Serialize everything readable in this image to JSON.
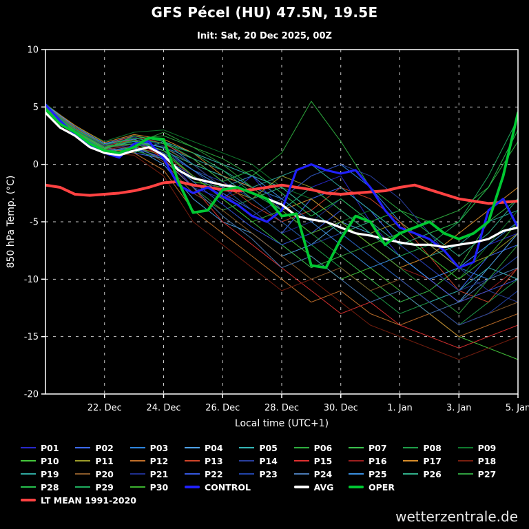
{
  "watermark": "wetterzentrale.de",
  "chart_data": {
    "type": "line",
    "title": "GFS Pécel (HU) 47.5N, 19.5E",
    "subtitle": "Init: Sat, 20 Dec 2025, 00Z",
    "xlabel": "Local time (UTC+1)",
    "ylabel": "850 hPa Temp. (°C)",
    "background": "#000000",
    "grid": "dashed",
    "ylim": [
      -20,
      10
    ],
    "yticks": [
      -20,
      -15,
      -10,
      -5,
      0,
      5,
      10
    ],
    "xlim_days": [
      0,
      16
    ],
    "xticks": [
      {
        "day": 2,
        "label": "22. Dec"
      },
      {
        "day": 4,
        "label": "24. Dec"
      },
      {
        "day": 6,
        "label": "26. Dec"
      },
      {
        "day": 8,
        "label": "28. Dec"
      },
      {
        "day": 10,
        "label": "30. Dec"
      },
      {
        "day": 12,
        "label": "1. Jan"
      },
      {
        "day": 14,
        "label": "3. Jan"
      },
      {
        "day": 16,
        "label": "5. Jan"
      }
    ],
    "member_x_step_days": 1,
    "main_x_step_days": 0.5,
    "members": [
      {
        "name": "P01",
        "color": "#2929cc",
        "values": [
          5.0,
          3.0,
          1.5,
          2.0,
          1.0,
          -2.0,
          -3.0,
          -1.0,
          -4.0,
          -2.0,
          -1.0,
          -5.0,
          -8.0,
          -10.0,
          -9.0,
          -7.0,
          -6.0
        ]
      },
      {
        "name": "P02",
        "color": "#3d6bff",
        "values": [
          4.8,
          2.8,
          1.2,
          1.0,
          0.5,
          -1.0,
          -2.5,
          -4.0,
          -6.0,
          -3.0,
          -2.0,
          -4.0,
          -7.0,
          -9.0,
          -11.0,
          -8.0,
          -7.0
        ]
      },
      {
        "name": "P03",
        "color": "#2f86e0",
        "values": [
          5.2,
          3.2,
          1.8,
          2.5,
          2.0,
          0.0,
          -1.0,
          -2.0,
          -3.0,
          -1.0,
          0.0,
          -2.0,
          -5.0,
          -7.0,
          -9.0,
          -10.0,
          -8.0
        ]
      },
      {
        "name": "P04",
        "color": "#4fa3e8",
        "values": [
          4.6,
          2.5,
          1.0,
          1.5,
          0.0,
          -3.0,
          -5.0,
          -6.0,
          -8.0,
          -7.0,
          -5.0,
          -6.0,
          -8.0,
          -10.0,
          -12.0,
          -9.0,
          -6.0
        ]
      },
      {
        "name": "P05",
        "color": "#35b8b8",
        "values": [
          5.0,
          3.0,
          1.5,
          1.0,
          2.0,
          1.0,
          0.0,
          -1.0,
          -2.0,
          -4.0,
          -6.0,
          -8.0,
          -10.0,
          -12.0,
          -11.0,
          -9.0,
          -10.0
        ]
      },
      {
        "name": "P06",
        "color": "#2fae3f",
        "values": [
          4.9,
          2.9,
          1.4,
          2.2,
          2.5,
          1.5,
          0.5,
          -1.0,
          1.0,
          5.5,
          2.0,
          -2.0,
          -4.0,
          -5.0,
          -4.0,
          -2.0,
          2.0
        ]
      },
      {
        "name": "P07",
        "color": "#3cc24e",
        "values": [
          5.1,
          3.1,
          1.6,
          1.8,
          1.0,
          -1.0,
          -3.0,
          -5.0,
          -7.0,
          -9.0,
          -8.0,
          -10.0,
          -12.0,
          -11.0,
          -9.0,
          -5.0,
          -3.0
        ]
      },
      {
        "name": "P08",
        "color": "#1f9e4a",
        "values": [
          4.7,
          2.7,
          1.3,
          1.2,
          0.5,
          -2.0,
          -4.0,
          -3.0,
          -5.0,
          -7.0,
          -9.0,
          -11.0,
          -13.0,
          -12.0,
          -14.0,
          -12.0,
          -10.0
        ]
      },
      {
        "name": "P09",
        "color": "#0f7a2e",
        "values": [
          5.3,
          3.3,
          2.0,
          2.8,
          3.0,
          2.0,
          1.0,
          0.0,
          -2.0,
          -3.0,
          -5.0,
          -4.0,
          -6.0,
          -8.0,
          -10.0,
          -7.0,
          -4.0
        ]
      },
      {
        "name": "P10",
        "color": "#45c93c",
        "values": [
          4.8,
          2.6,
          1.1,
          1.5,
          0.8,
          -1.5,
          -2.0,
          -4.0,
          -6.0,
          -8.0,
          -10.0,
          -9.0,
          -11.0,
          -13.0,
          -15.0,
          -16.0,
          -17.0
        ]
      },
      {
        "name": "P11",
        "color": "#9d9d2a",
        "values": [
          5.0,
          3.0,
          1.5,
          2.0,
          1.5,
          0.0,
          -2.0,
          -3.0,
          -1.0,
          -2.0,
          -4.0,
          -6.0,
          -5.0,
          -7.0,
          -9.0,
          -8.0,
          -6.0
        ]
      },
      {
        "name": "P12",
        "color": "#c2702a",
        "values": [
          4.9,
          2.8,
          1.4,
          1.0,
          -0.5,
          -4.0,
          -6.0,
          -8.0,
          -10.0,
          -12.0,
          -11.0,
          -13.0,
          -14.0,
          -13.0,
          -15.0,
          -14.0,
          -13.0
        ]
      },
      {
        "name": "P13",
        "color": "#d2452a",
        "values": [
          5.1,
          3.2,
          1.7,
          2.5,
          1.8,
          0.5,
          -1.5,
          -3.5,
          -5.0,
          -4.0,
          -2.0,
          -3.0,
          -5.0,
          -8.0,
          -11.0,
          -12.0,
          -9.0
        ]
      },
      {
        "name": "P14",
        "color": "#2a3f9e",
        "values": [
          4.7,
          2.7,
          1.2,
          1.8,
          1.2,
          -0.5,
          -2.5,
          -4.5,
          -3.0,
          -1.0,
          0.0,
          -1.0,
          -3.0,
          -6.0,
          -9.0,
          -11.0,
          -12.0
        ]
      },
      {
        "name": "P15",
        "color": "#e03131",
        "values": [
          5.0,
          3.0,
          1.6,
          2.2,
          0.5,
          -2.0,
          -5.0,
          -7.0,
          -9.0,
          -11.0,
          -13.0,
          -12.0,
          -14.0,
          -15.0,
          -16.0,
          -15.0,
          -14.0
        ]
      },
      {
        "name": "P16",
        "color": "#9e1f1f",
        "values": [
          4.8,
          2.9,
          1.3,
          1.6,
          0.8,
          -1.0,
          -3.0,
          -2.0,
          -4.0,
          -6.0,
          -5.0,
          -7.0,
          -9.0,
          -10.0,
          -12.0,
          -11.0,
          -9.0
        ]
      },
      {
        "name": "P17",
        "color": "#d98e2b",
        "values": [
          5.2,
          3.4,
          1.9,
          2.6,
          2.2,
          1.0,
          -1.0,
          -2.0,
          -4.0,
          -3.0,
          -5.0,
          -7.0,
          -9.0,
          -8.0,
          -6.0,
          -4.0,
          -2.0
        ]
      },
      {
        "name": "P18",
        "color": "#7a1f10",
        "values": [
          4.6,
          2.5,
          1.0,
          0.8,
          -1.0,
          -5.0,
          -7.0,
          -9.0,
          -11.0,
          -10.0,
          -12.0,
          -14.0,
          -15.0,
          -16.0,
          -17.0,
          -16.0,
          -15.0
        ]
      },
      {
        "name": "P19",
        "color": "#2fa9a0",
        "values": [
          5.0,
          3.1,
          1.5,
          2.0,
          1.5,
          0.5,
          -0.5,
          -2.0,
          -1.0,
          0.0,
          -2.0,
          -4.0,
          -6.0,
          -8.0,
          -7.0,
          -5.0,
          -4.0
        ]
      },
      {
        "name": "P20",
        "color": "#8a5a2a",
        "values": [
          4.9,
          2.8,
          1.4,
          1.8,
          0.2,
          -2.5,
          -4.0,
          -6.0,
          -8.0,
          -10.0,
          -9.0,
          -11.0,
          -10.0,
          -12.0,
          -14.0,
          -13.0,
          -12.0
        ]
      },
      {
        "name": "P21",
        "color": "#1f2f8e",
        "values": [
          5.1,
          3.0,
          1.6,
          2.4,
          1.6,
          0.0,
          -2.0,
          -4.0,
          -6.0,
          -5.0,
          -3.0,
          -5.0,
          -7.0,
          -9.0,
          -11.0,
          -10.0,
          -8.0
        ]
      },
      {
        "name": "P22",
        "color": "#3558e0",
        "values": [
          4.8,
          2.7,
          1.2,
          1.4,
          0.6,
          -1.5,
          -3.5,
          -5.5,
          -7.0,
          -6.0,
          -4.0,
          -6.0,
          -8.0,
          -10.0,
          -12.0,
          -11.0,
          -10.0
        ]
      },
      {
        "name": "P23",
        "color": "#2244aa",
        "values": [
          5.0,
          3.0,
          1.5,
          2.0,
          1.0,
          -0.5,
          -1.5,
          -3.0,
          -5.0,
          -7.0,
          -6.0,
          -8.0,
          -10.0,
          -12.0,
          -14.0,
          -13.0,
          -11.0
        ]
      },
      {
        "name": "P24",
        "color": "#4a7ab5",
        "values": [
          4.7,
          2.6,
          1.1,
          1.6,
          0.4,
          -2.0,
          -4.5,
          -6.5,
          -9.0,
          -8.0,
          -10.0,
          -12.0,
          -11.0,
          -13.0,
          -12.0,
          -10.0,
          -9.0
        ]
      },
      {
        "name": "P25",
        "color": "#3a8fe0",
        "values": [
          5.2,
          3.3,
          1.8,
          2.2,
          1.4,
          -0.5,
          -2.0,
          -1.0,
          -3.0,
          -5.0,
          -7.0,
          -9.0,
          -8.0,
          -10.0,
          -9.0,
          -7.0,
          -5.0
        ]
      },
      {
        "name": "P26",
        "color": "#31b08a",
        "values": [
          4.9,
          2.9,
          1.4,
          2.0,
          1.2,
          0.0,
          -1.0,
          -3.0,
          -2.0,
          -4.0,
          -6.0,
          -5.0,
          -7.0,
          -6.0,
          -8.0,
          -6.0,
          -3.0
        ]
      },
      {
        "name": "P27",
        "color": "#2f9e3f",
        "values": [
          5.0,
          3.0,
          1.5,
          1.8,
          2.8,
          1.5,
          0.0,
          -2.0,
          -4.0,
          -6.0,
          -8.0,
          -7.0,
          -9.0,
          -11.0,
          -13.0,
          -10.0,
          -7.0
        ]
      },
      {
        "name": "P28",
        "color": "#27c24e",
        "values": [
          4.8,
          2.8,
          1.3,
          2.5,
          2.0,
          0.5,
          -1.5,
          -0.5,
          -2.5,
          -4.5,
          -3.0,
          -5.0,
          -4.0,
          -6.0,
          -5.0,
          -2.0,
          3.0
        ]
      },
      {
        "name": "P29",
        "color": "#1fae5e",
        "values": [
          5.1,
          3.1,
          1.7,
          2.3,
          1.8,
          1.0,
          -0.5,
          -2.5,
          -4.0,
          -2.0,
          -4.0,
          -6.0,
          -8.0,
          -7.0,
          -5.0,
          -1.0,
          4.0
        ]
      },
      {
        "name": "P30",
        "color": "#3cb22f",
        "values": [
          4.9,
          2.9,
          1.5,
          2.1,
          1.2,
          -1.0,
          -3.0,
          -5.0,
          -4.0,
          -6.0,
          -5.0,
          -7.0,
          -6.0,
          -8.0,
          -10.0,
          -8.0,
          -5.0
        ]
      }
    ],
    "main_series": [
      {
        "name": "LT MEAN 1991-2020",
        "color": "#ff4242",
        "width": 4,
        "values": [
          -1.8,
          -2.0,
          -2.6,
          -2.7,
          -2.6,
          -2.5,
          -2.3,
          -2.0,
          -1.6,
          -1.5,
          -1.8,
          -2.0,
          -2.2,
          -2.3,
          -2.2,
          -2.0,
          -1.8,
          -2.0,
          -2.2,
          -2.5,
          -2.6,
          -2.5,
          -2.4,
          -2.3,
          -2.0,
          -1.8,
          -2.2,
          -2.6,
          -3.0,
          -3.2,
          -3.4,
          -3.3,
          -3.2
        ]
      },
      {
        "name": "CONTROL",
        "color": "#2020ff",
        "width": 3.2,
        "values": [
          5.2,
          3.8,
          2.6,
          1.6,
          1.0,
          0.6,
          1.8,
          2.0,
          0.5,
          -1.8,
          -2.5,
          -2.0,
          -2.8,
          -3.5,
          -4.5,
          -5.0,
          -4.0,
          -0.5,
          0.0,
          -0.5,
          -0.8,
          -0.5,
          -2.0,
          -4.0,
          -5.5,
          -6.0,
          -6.5,
          -7.5,
          -9.0,
          -8.5,
          -4.0,
          -3.0,
          -5.5
        ]
      },
      {
        "name": "AVG",
        "color": "#ffffff",
        "width": 3.2,
        "values": [
          4.5,
          3.2,
          2.5,
          1.5,
          1.0,
          0.8,
          1.2,
          1.5,
          0.8,
          -0.5,
          -1.2,
          -1.5,
          -1.8,
          -2.0,
          -2.5,
          -3.0,
          -3.5,
          -4.5,
          -4.8,
          -5.0,
          -5.5,
          -6.0,
          -6.2,
          -6.5,
          -6.8,
          -7.0,
          -7.0,
          -7.2,
          -7.0,
          -6.8,
          -6.5,
          -5.8,
          -5.5
        ]
      },
      {
        "name": "OPER",
        "color": "#00c832",
        "width": 3.8,
        "values": [
          4.8,
          3.5,
          2.8,
          1.8,
          1.2,
          1.0,
          1.5,
          2.3,
          2.2,
          -1.5,
          -4.2,
          -4.0,
          -2.2,
          -2.0,
          -2.5,
          -3.0,
          -4.5,
          -4.3,
          -8.8,
          -9.0,
          -6.5,
          -4.5,
          -5.0,
          -7.0,
          -6.0,
          -5.5,
          -5.0,
          -6.0,
          -6.5,
          -6.0,
          -5.0,
          -1.0,
          4.5
        ]
      }
    ],
    "legend_rows": [
      [
        "P01",
        "P02",
        "P03",
        "P04",
        "P05",
        "P06",
        "P07",
        "P08",
        "P09"
      ],
      [
        "P10",
        "P11",
        "P12",
        "P13",
        "P14",
        "P15",
        "P16",
        "P17",
        "P18"
      ],
      [
        "P19",
        "P20",
        "P21",
        "P22",
        "P23",
        "P24",
        "P25",
        "P26",
        "P27"
      ],
      [
        "P28",
        "P29",
        "P30",
        "CONTROL",
        "AVG",
        "OPER"
      ],
      [
        "LT MEAN 1991-2020"
      ]
    ]
  }
}
